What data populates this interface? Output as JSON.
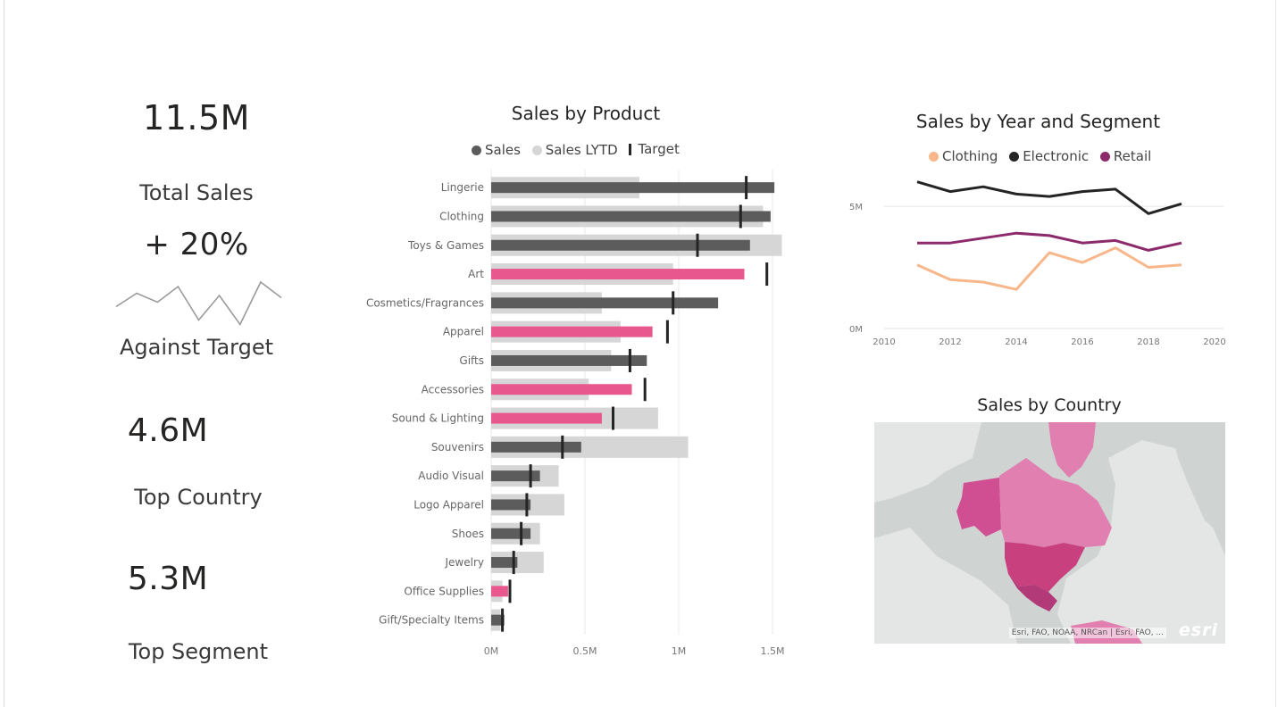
{
  "kpis": {
    "total_sales": {
      "value": "11.5M",
      "label": "Total Sales"
    },
    "against_target": {
      "value": "+ 20%",
      "label": "Against Target",
      "sparkline": [
        0.55,
        0.25,
        0.45,
        0.1,
        0.85,
        0.3,
        0.95,
        0.0,
        0.35
      ]
    },
    "top_country": {
      "value": "4.6M",
      "label": "Top Country"
    },
    "top_segment": {
      "value": "5.3M",
      "label": "Top Segment"
    }
  },
  "colors": {
    "sales": "#5c5c5c",
    "sales_highlight": "#e8588f",
    "sales_lytd": "#d6d6d6",
    "target": "#252423",
    "clothing": "#f7b78a",
    "electronic": "#252423",
    "retail": "#8c2a6b",
    "map_land": "#cfd3d2",
    "map_water": "#e4e6e6",
    "map_highlight": "#e07fb0"
  },
  "chart_data": [
    {
      "type": "bar",
      "orientation": "horizontal",
      "title": "Sales by Product",
      "legend": {
        "sales": "Sales",
        "lytd": "Sales LYTD",
        "target": "Target"
      },
      "categories": [
        "Lingerie",
        "Clothing",
        "Toys & Games",
        "Art",
        "Cosmetics/Fragrances",
        "Apparel",
        "Gifts",
        "Accessories",
        "Sound & Lighting",
        "Souvenirs",
        "Audio Visual",
        "Logo Apparel",
        "Shoes",
        "Jewelry",
        "Office Supplies",
        "Gift/Specialty Items"
      ],
      "series": [
        {
          "name": "Sales",
          "values": [
            1.51,
            1.49,
            1.38,
            1.35,
            1.21,
            0.86,
            0.83,
            0.75,
            0.59,
            0.48,
            0.26,
            0.21,
            0.21,
            0.14,
            0.09,
            0.07
          ]
        },
        {
          "name": "Sales LYTD",
          "values": [
            0.79,
            1.45,
            1.55,
            0.97,
            0.59,
            0.69,
            0.64,
            0.52,
            0.89,
            1.05,
            0.36,
            0.39,
            0.26,
            0.28,
            0.06,
            0.05
          ]
        },
        {
          "name": "Target",
          "values": [
            1.36,
            1.33,
            1.1,
            1.47,
            0.97,
            0.94,
            0.74,
            0.82,
            0.65,
            0.38,
            0.21,
            0.19,
            0.16,
            0.12,
            0.1,
            0.06
          ]
        }
      ],
      "highlighted": [
        "Art",
        "Apparel",
        "Accessories",
        "Sound & Lighting",
        "Office Supplies"
      ],
      "xlim": [
        0,
        1.5
      ],
      "xticks": [
        0,
        0.5,
        1,
        1.5
      ],
      "xtick_labels": [
        "0M",
        "0.5M",
        "1M",
        "1.5M"
      ],
      "grid": true
    },
    {
      "type": "line",
      "title": "Sales by Year and Segment",
      "x": [
        2011,
        2012,
        2013,
        2014,
        2015,
        2016,
        2017,
        2018,
        2019
      ],
      "series": [
        {
          "name": "Clothing",
          "values": [
            2.6,
            2.0,
            1.9,
            1.6,
            3.1,
            2.7,
            3.3,
            2.5,
            2.6
          ]
        },
        {
          "name": "Electronic",
          "values": [
            6.0,
            5.6,
            5.8,
            5.5,
            5.4,
            5.6,
            5.7,
            4.7,
            5.1
          ]
        },
        {
          "name": "Retail",
          "values": [
            3.5,
            3.5,
            3.7,
            3.9,
            3.8,
            3.5,
            3.6,
            3.2,
            3.5
          ]
        }
      ],
      "xlim": [
        2010,
        2020
      ],
      "xticks": [
        2010,
        2012,
        2014,
        2016,
        2018,
        2020
      ],
      "ylim": [
        0,
        6.5
      ],
      "yticks": [
        0,
        5
      ],
      "ytick_labels": [
        "0M",
        "5M"
      ],
      "grid": true
    }
  ],
  "map": {
    "title": "Sales by Country",
    "attribution": "Esri, FAO, NOAA, NRCan | Esri, FAO, ...",
    "logo": "esri"
  }
}
